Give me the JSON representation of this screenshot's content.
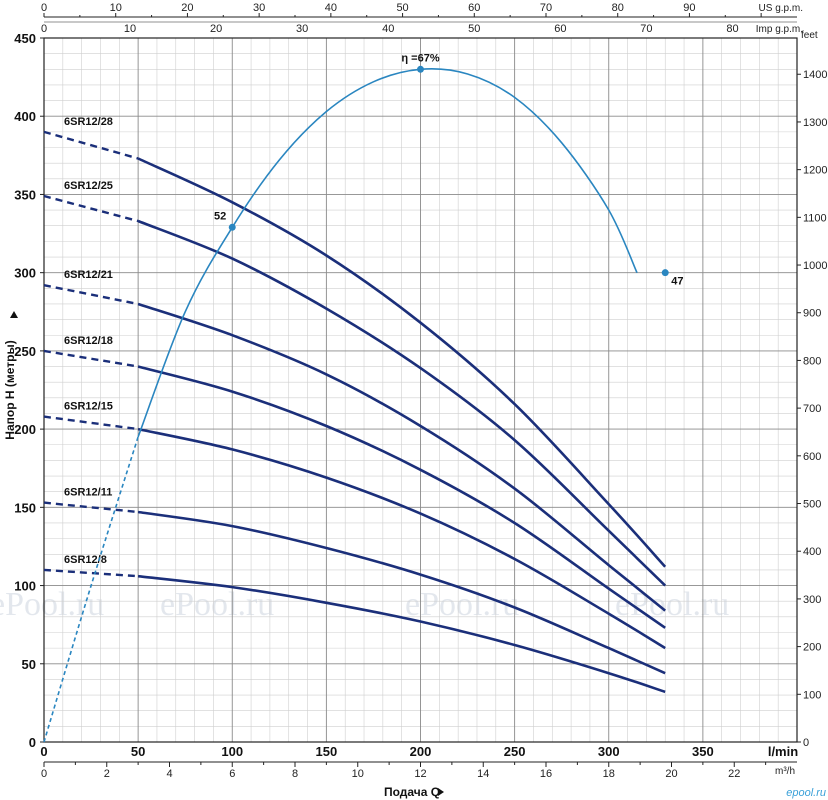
{
  "chart_data": {
    "type": "line",
    "axes": {
      "bottom_lmin": {
        "unit": "l/min",
        "min": 0,
        "max": 400,
        "ticks": [
          0,
          50,
          100,
          150,
          200,
          250,
          300,
          350
        ]
      },
      "bottom_m3h": {
        "unit": "m³/h",
        "min": 0,
        "max": 24,
        "ticks": [
          0,
          2,
          4,
          6,
          8,
          10,
          12,
          14,
          16,
          18,
          20,
          22
        ]
      },
      "top_usgpm": {
        "unit": "US g.p.m.",
        "min": 0,
        "max": 105,
        "ticks": [
          0,
          10,
          20,
          30,
          40,
          50,
          60,
          70,
          80,
          90
        ]
      },
      "top_impgpm": {
        "unit": "Imp g.p.m.",
        "min": 0,
        "max": 87.5,
        "ticks": [
          0,
          10,
          20,
          30,
          40,
          50,
          60,
          70,
          80
        ]
      },
      "left_m": {
        "min": 0,
        "max": 450,
        "ticks": [
          0,
          50,
          100,
          150,
          200,
          250,
          300,
          350,
          400,
          450
        ]
      },
      "right_feet": {
        "unit": "feet",
        "min": 0,
        "max": 1476,
        "ticks": [
          0,
          100,
          200,
          300,
          400,
          500,
          600,
          700,
          800,
          900,
          1000,
          1100,
          1200,
          1300,
          1400
        ]
      }
    },
    "xlabel": "Подача Q",
    "ylabel": "Напор H (метры)",
    "grid": true,
    "series": [
      {
        "name": "6SR12/28",
        "dashed_x": [
          0,
          50
        ],
        "x": [
          0,
          50,
          100,
          150,
          200,
          250,
          300,
          330
        ],
        "y": [
          390,
          373,
          345,
          311,
          268,
          216,
          152,
          112
        ]
      },
      {
        "name": "6SR12/25",
        "dashed_x": [
          0,
          50
        ],
        "x": [
          0,
          50,
          100,
          150,
          200,
          250,
          300,
          330
        ],
        "y": [
          349,
          333,
          309,
          277,
          239,
          193,
          135,
          100
        ]
      },
      {
        "name": "6SR12/21",
        "dashed_x": [
          0,
          50
        ],
        "x": [
          0,
          50,
          100,
          150,
          200,
          250,
          300,
          330
        ],
        "y": [
          292,
          280,
          260,
          235,
          202,
          162,
          113,
          84
        ]
      },
      {
        "name": "6SR12/18",
        "dashed_x": [
          0,
          50
        ],
        "x": [
          0,
          50,
          100,
          150,
          200,
          250,
          300,
          330
        ],
        "y": [
          250,
          240,
          224,
          202,
          174,
          140,
          98,
          73
        ]
      },
      {
        "name": "6SR12/15",
        "dashed_x": [
          0,
          50
        ],
        "x": [
          0,
          50,
          100,
          150,
          200,
          250,
          300,
          330
        ],
        "y": [
          208,
          200,
          187,
          169,
          146,
          117,
          82,
          60
        ]
      },
      {
        "name": "6SR12/11",
        "dashed_x": [
          0,
          50
        ],
        "x": [
          0,
          50,
          100,
          150,
          200,
          250,
          300,
          330
        ],
        "y": [
          153,
          147,
          138,
          124,
          107,
          86,
          60,
          44
        ]
      },
      {
        "name": "6SR12/8",
        "dashed_x": [
          0,
          50
        ],
        "x": [
          0,
          50,
          100,
          150,
          200,
          250,
          300,
          330
        ],
        "y": [
          110,
          106,
          99,
          89,
          77,
          62,
          44,
          32
        ]
      }
    ],
    "efficiency_curve": {
      "x": [
        0,
        25,
        50,
        75,
        100,
        125,
        150,
        175,
        200,
        225,
        250,
        275,
        300,
        315
      ],
      "y": [
        0,
        100,
        195,
        275,
        329,
        372,
        403,
        422,
        430,
        427,
        412,
        383,
        340,
        300
      ],
      "dashed_x": [
        0,
        50
      ],
      "points": [
        {
          "x": 100,
          "y": 329,
          "label": "52"
        },
        {
          "x": 200,
          "y": 430,
          "label": "η =67%"
        },
        {
          "x": 330,
          "y": 300,
          "label": "47"
        }
      ]
    },
    "watermark": "ePool.ru",
    "logo": "epool.ru"
  }
}
